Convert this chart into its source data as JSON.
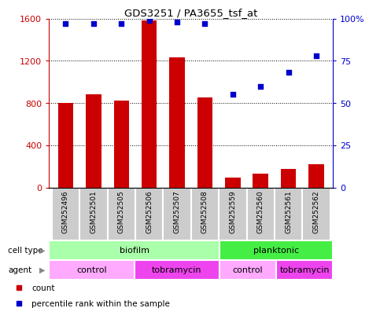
{
  "title": "GDS3251 / PA3655_tsf_at",
  "samples": [
    "GSM252496",
    "GSM252501",
    "GSM252505",
    "GSM252506",
    "GSM252507",
    "GSM252508",
    "GSM252559",
    "GSM252560",
    "GSM252561",
    "GSM252562"
  ],
  "counts": [
    800,
    880,
    820,
    1580,
    1230,
    850,
    90,
    130,
    175,
    220
  ],
  "percentiles": [
    97,
    97,
    97,
    99,
    98,
    97,
    55,
    60,
    68,
    78
  ],
  "ylim_left": [
    0,
    1600
  ],
  "ylim_right": [
    0,
    100
  ],
  "yticks_left": [
    0,
    400,
    800,
    1200,
    1600
  ],
  "yticks_right": [
    0,
    25,
    50,
    75,
    100
  ],
  "ytick_right_labels": [
    "0",
    "25",
    "50",
    "75",
    "100%"
  ],
  "cell_type_groups": [
    {
      "label": "biofilm",
      "start": 0,
      "end": 6,
      "color": "#AAFFAA"
    },
    {
      "label": "planktonic",
      "start": 6,
      "end": 10,
      "color": "#44EE44"
    }
  ],
  "agent_groups": [
    {
      "label": "control",
      "start": 0,
      "end": 3,
      "color": "#FFAAFF"
    },
    {
      "label": "tobramycin",
      "start": 3,
      "end": 6,
      "color": "#EE44EE"
    },
    {
      "label": "control",
      "start": 6,
      "end": 8,
      "color": "#FFAAFF"
    },
    {
      "label": "tobramycin",
      "start": 8,
      "end": 10,
      "color": "#EE44EE"
    }
  ],
  "bar_color": "#CC0000",
  "dot_color": "#0000CC",
  "bar_width": 0.55,
  "left_axis_color": "#CC0000",
  "right_axis_color": "#0000CC",
  "legend_items": [
    {
      "color": "#CC0000",
      "label": "count"
    },
    {
      "color": "#0000CC",
      "label": "percentile rank within the sample"
    }
  ],
  "sample_bg_color": "#CCCCCC",
  "sample_border_color": "#FFFFFF"
}
